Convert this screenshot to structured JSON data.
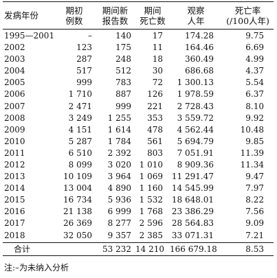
{
  "table": {
    "headers": [
      [
        "发病年份",
        ""
      ],
      [
        "期初",
        "例数"
      ],
      [
        "期间新",
        "报告数"
      ],
      [
        "期间",
        "死亡数"
      ],
      [
        "观察",
        "人年"
      ],
      [
        "死亡率",
        "(/100人年)"
      ]
    ],
    "rows": [
      [
        "1995—2001",
        "–",
        "140",
        "17",
        "174.28",
        "9.75"
      ],
      [
        "2002",
        "123",
        "175",
        "11",
        "164.46",
        "6.69"
      ],
      [
        "2003",
        "287",
        "248",
        "18",
        "360.49",
        "4.99"
      ],
      [
        "2004",
        "517",
        "512",
        "30",
        "686.68",
        "4.37"
      ],
      [
        "2005",
        "999",
        "783",
        "72",
        "1 300.13",
        "5.54"
      ],
      [
        "2006",
        "1 710",
        "887",
        "126",
        "1 978.59",
        "6.37"
      ],
      [
        "2007",
        "2 471",
        "999",
        "221",
        "2 728.43",
        "8.10"
      ],
      [
        "2008",
        "3 249",
        "1 255",
        "353",
        "3 559.72",
        "9.92"
      ],
      [
        "2009",
        "4 151",
        "1 614",
        "478",
        "4 562.44",
        "10.48"
      ],
      [
        "2010",
        "5 287",
        "1 784",
        "561",
        "5 694.79",
        "9.85"
      ],
      [
        "2011",
        "6 510",
        "2 392",
        "803",
        "7 051.91",
        "11.39"
      ],
      [
        "2012",
        "8 099",
        "3 020",
        "1 010",
        "8 909.36",
        "11.34"
      ],
      [
        "2013",
        "10 109",
        "3 964",
        "1 069",
        "11 291.47",
        "9.47"
      ],
      [
        "2014",
        "13 004",
        "4 890",
        "1 160",
        "14 545.99",
        "7.97"
      ],
      [
        "2015",
        "16 734",
        "5 936",
        "1 532",
        "18 648.01",
        "8.22"
      ],
      [
        "2016",
        "21 138",
        "6 999",
        "1 768",
        "23 386.29",
        "7.56"
      ],
      [
        "2017",
        "26 369",
        "8 277",
        "2 596",
        "28 564.83",
        "9.09"
      ],
      [
        "2018",
        "32 050",
        "9 357",
        "2 385",
        "33 071.31",
        "7.21"
      ]
    ],
    "total": [
      "合计",
      "",
      "53 232",
      "14 210",
      "166 679.18",
      "8.53"
    ]
  },
  "note": "注:–为未纳入分析"
}
